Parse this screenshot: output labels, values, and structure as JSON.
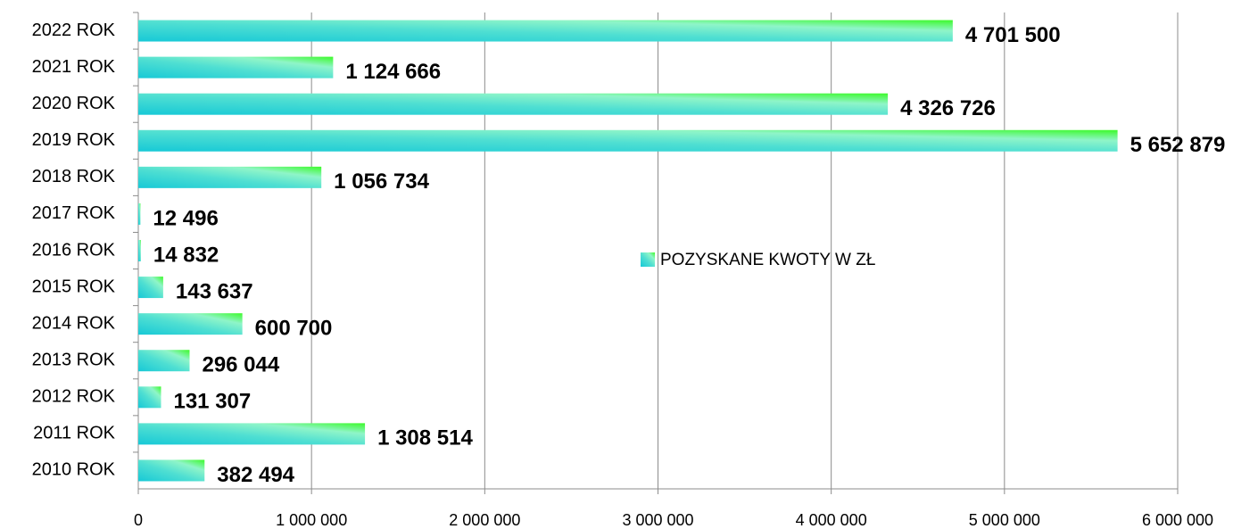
{
  "chart_data": {
    "type": "bar",
    "orientation": "horizontal",
    "categories": [
      "2022 ROK",
      "2021 ROK",
      "2020 ROK",
      "2019 ROK",
      "2018 ROK",
      "2017 ROK",
      "2016 ROK",
      "2015 ROK",
      "2014 ROK",
      "2013 ROK",
      "2012 ROK",
      "2011 ROK",
      "2010 ROK"
    ],
    "series": [
      {
        "name": "POZYSKANE KWOTY W ZŁ",
        "color": [
          "#17c9d6",
          "#3dfa2a"
        ],
        "values": [
          4701500,
          1124666,
          4326726,
          5652879,
          1056734,
          12496,
          14832,
          143637,
          600700,
          296044,
          131307,
          1308514,
          382494
        ],
        "value_labels": [
          "4 701 500",
          "1 124 666",
          "4 326 726",
          "5 652 879",
          "1 056 734",
          "12 496",
          "14 832",
          "143 637",
          "600 700",
          "296 044",
          "131 307",
          "1 308 514",
          "382 494"
        ]
      }
    ],
    "xlim": [
      0,
      6000000
    ],
    "xticks": [
      0,
      {
        "value": 1000000,
        "label": "1 000 000"
      },
      {
        "value": 2000000,
        "label": "2 000 000"
      },
      {
        "value": 3000000,
        "label": "3 000 000"
      },
      {
        "value": 4000000,
        "label": "4 000 000"
      },
      {
        "value": 5000000,
        "label": "5 000 000"
      },
      {
        "value": 6000000,
        "label": "6 000 000"
      }
    ],
    "grid": true
  }
}
